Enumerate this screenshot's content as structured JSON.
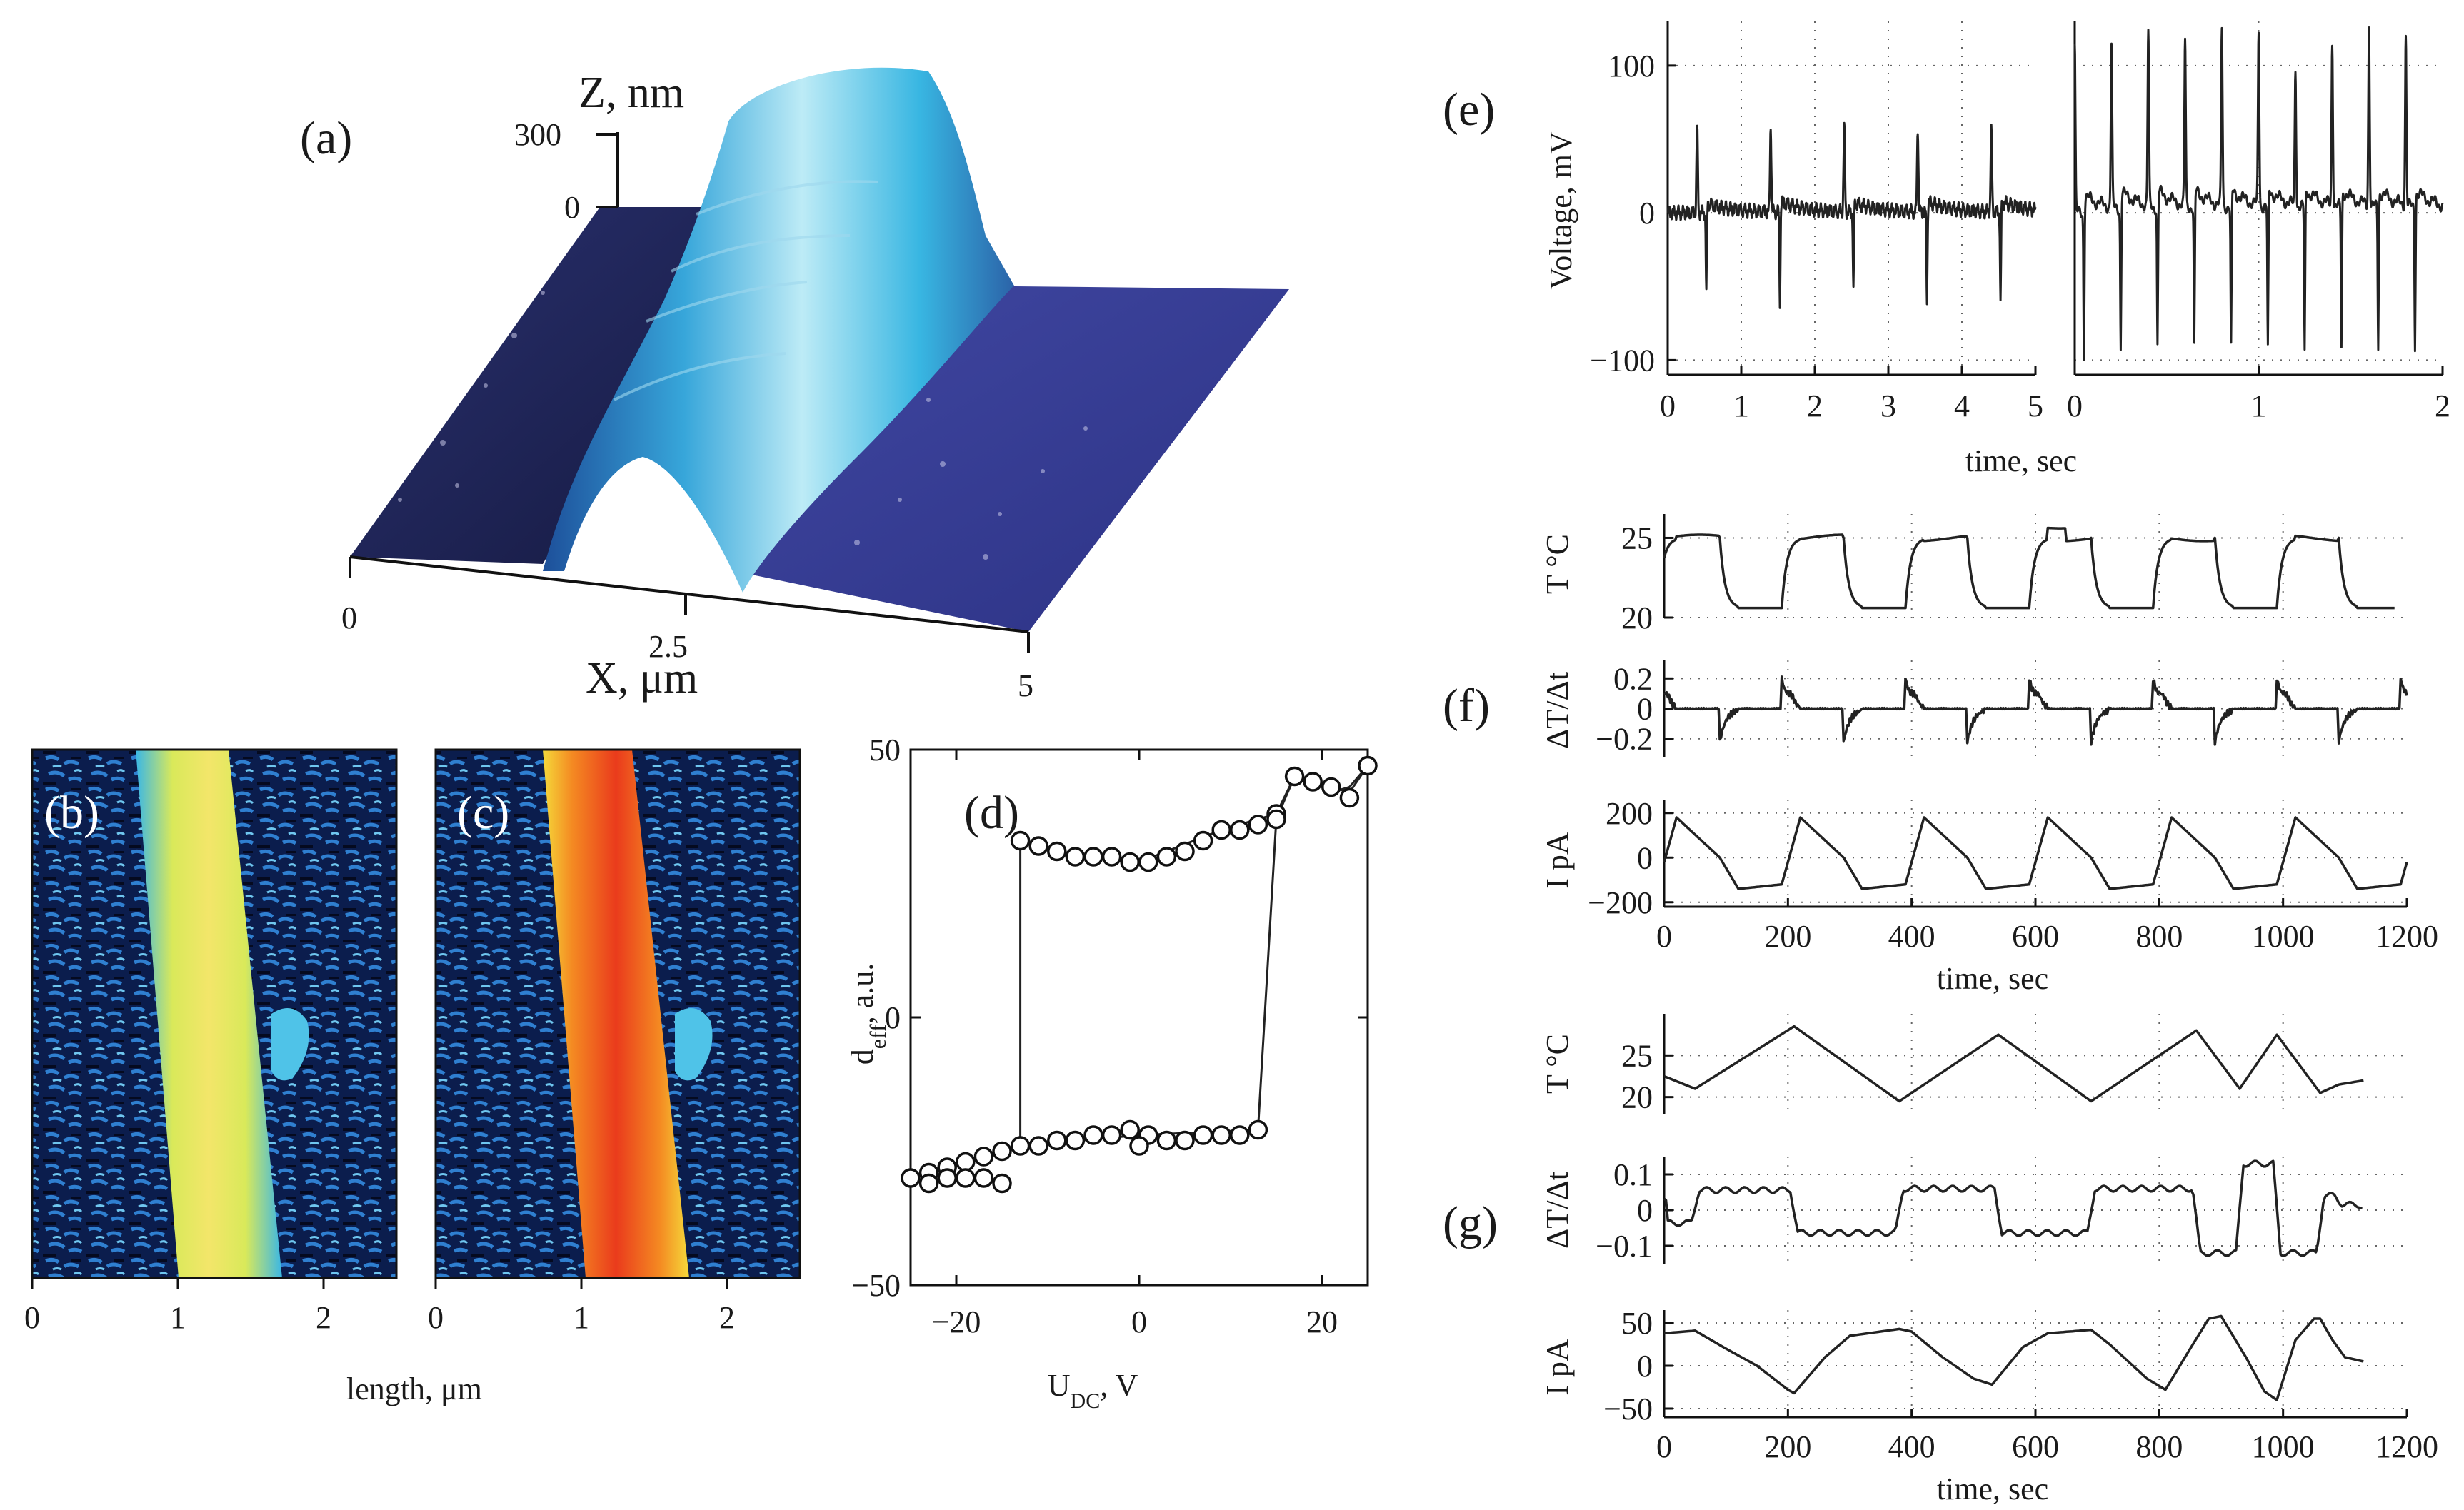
{
  "chart_data": [
    {
      "panel": "(a)",
      "type": "surface3d",
      "z_label": "Z, nm",
      "z_ticks": [
        "300",
        "0"
      ],
      "x_label": "X, μm",
      "x_ticks": [
        "0",
        "2.5",
        "5"
      ],
      "colors": {
        "ridge": "#4fc3e8",
        "base": "#3a3f96",
        "dark": "#1a1f55"
      }
    },
    {
      "panel": "(b)",
      "type": "heatmap",
      "x_label": "length, μm",
      "x_ticks": [
        "0",
        "1",
        "2"
      ],
      "xlim": [
        0,
        2.5
      ]
    },
    {
      "panel": "(c)",
      "type": "heatmap",
      "x_ticks": [
        "0",
        "1",
        "2"
      ],
      "xlim": [
        0,
        2.5
      ]
    },
    {
      "panel": "(d)",
      "type": "scatter",
      "x_label": "U_DC, V",
      "y_label": "d_eff, a.u.",
      "xlim": [
        -25,
        25
      ],
      "ylim": [
        -50,
        50
      ],
      "x_ticks": [
        -20,
        0,
        20
      ],
      "y_ticks": [
        -50,
        0,
        50
      ],
      "x_tick_labels": [
        "−20",
        "0",
        "20"
      ],
      "y_tick_labels": [
        "−50",
        "0",
        "50"
      ],
      "series": [
        {
          "x": [
            -13,
            -11,
            -9,
            -7,
            -5,
            -3,
            -1,
            1,
            3,
            5,
            7,
            9,
            11,
            13,
            15
          ],
          "y": [
            33,
            32,
            31,
            30,
            30,
            30,
            29,
            29,
            30,
            31,
            33,
            35,
            35,
            36,
            38
          ]
        },
        {
          "x": [
            -25,
            -23,
            -21,
            -19,
            -17,
            -15,
            -13,
            -11,
            -9,
            -7,
            -5,
            -3,
            -1,
            1,
            3,
            5,
            7,
            9,
            11,
            13
          ],
          "y": [
            -30,
            -29,
            -28,
            -27,
            -26,
            -25,
            -24,
            -24,
            -23,
            -23,
            -22,
            -22,
            -21,
            -22,
            -23,
            -23,
            -22,
            -22,
            -22,
            -21
          ]
        },
        {
          "x": [
            -23,
            -21,
            -19,
            -17,
            -15,
            0,
            15,
            17,
            19,
            21,
            23,
            25
          ],
          "y": [
            -31,
            -30,
            -30,
            -30,
            -31,
            -24,
            37,
            45,
            44,
            43,
            41,
            47
          ]
        }
      ],
      "loop": [
        [
          -25,
          -30
        ],
        [
          -13,
          -24
        ],
        [
          -13,
          33
        ],
        [
          -9,
          31
        ],
        [
          0,
          29
        ],
        [
          9,
          35
        ],
        [
          15,
          38
        ],
        [
          17,
          45
        ],
        [
          19,
          44
        ],
        [
          21,
          43
        ],
        [
          23,
          42
        ],
        [
          25,
          47
        ],
        [
          23,
          43
        ],
        [
          21,
          42
        ],
        [
          19,
          44
        ],
        [
          17,
          45
        ],
        [
          15,
          37
        ],
        [
          13,
          -21
        ],
        [
          0,
          -22
        ],
        [
          -13,
          -24
        ],
        [
          -25,
          -30
        ]
      ]
    },
    {
      "panel": "(e)",
      "type": "line",
      "y_label": "Voltage, mV",
      "x_label": "time, sec",
      "ylim": [
        -110,
        130
      ],
      "y_ticks": [
        -100,
        0,
        100
      ],
      "y_tick_labels": [
        "−100",
        "0",
        "100"
      ],
      "left": {
        "xlim": [
          0,
          5
        ],
        "x_ticks": [
          0,
          1,
          2,
          3,
          4,
          5
        ],
        "spike_times": [
          0.4,
          1.4,
          2.4,
          3.4,
          4.4
        ],
        "spike_heights": [
          58,
          58,
          57,
          57,
          55
        ],
        "neg_depth": [
          -55,
          -62,
          -55,
          -60,
          -62
        ]
      },
      "right": {
        "xlim": [
          0,
          2
        ],
        "x_ticks": [
          0,
          1,
          2
        ],
        "spike_times": [
          0.0,
          0.2,
          0.4,
          0.6,
          0.8,
          1.0,
          1.2,
          1.4,
          1.6,
          1.8
        ],
        "spike_heights": [
          115,
          110,
          118,
          112,
          120,
          118,
          92,
          110,
          122,
          115
        ],
        "neg_depth": [
          -98,
          -96,
          -95,
          -96,
          -97,
          -98,
          -100,
          -96,
          -95,
          -94
        ]
      }
    },
    {
      "panel": "(f)",
      "type": "line",
      "x_label": "time, sec",
      "xlim": [
        0,
        1200
      ],
      "x_ticks": [
        0,
        200,
        400,
        600,
        800,
        1000,
        1200
      ],
      "T": {
        "label": "T °C",
        "ylim": [
          20,
          26.5
        ],
        "y_ticks": [
          20,
          25
        ],
        "period": 200,
        "low": 20.6,
        "high": 25.0
      },
      "dTdt": {
        "label": "ΔT/Δt",
        "ylim": [
          -0.32,
          0.32
        ],
        "y_ticks": [
          0.2,
          0,
          -0.2
        ],
        "y_tick_labels": [
          "0.2",
          "0",
          "−0.2"
        ]
      },
      "I": {
        "label": "I pA",
        "ylim": [
          -220,
          260
        ],
        "y_ticks": [
          200,
          0,
          -200
        ],
        "y_tick_labels": [
          "200",
          "0",
          "−200"
        ]
      }
    },
    {
      "panel": "(g)",
      "type": "line",
      "x_label": "time, sec",
      "xlim": [
        0,
        1200
      ],
      "x_ticks": [
        0,
        200,
        400,
        600,
        800,
        1000,
        1200
      ],
      "T": {
        "label": "T °C",
        "ylim": [
          18,
          30
        ],
        "y_ticks": [
          20,
          25
        ],
        "points": [
          [
            0,
            22.5
          ],
          [
            50,
            21
          ],
          [
            210,
            28.5
          ],
          [
            380,
            19.5
          ],
          [
            540,
            27.5
          ],
          [
            690,
            19.5
          ],
          [
            860,
            28
          ],
          [
            930,
            21
          ],
          [
            990,
            27.5
          ],
          [
            1060,
            20.5
          ],
          [
            1090,
            21.5
          ],
          [
            1130,
            22
          ]
        ]
      },
      "dTdt": {
        "label": "ΔT/Δt",
        "ylim": [
          -0.15,
          0.15
        ],
        "y_ticks": [
          0.1,
          0,
          -0.1
        ],
        "y_tick_labels": [
          "0.1",
          "0",
          "−0.1"
        ]
      },
      "I": {
        "label": "I pA",
        "ylim": [
          -60,
          65
        ],
        "y_ticks": [
          50,
          0,
          -50
        ],
        "y_tick_labels": [
          "50",
          "0",
          "−50"
        ],
        "points": [
          [
            0,
            38
          ],
          [
            50,
            41
          ],
          [
            100,
            20
          ],
          [
            150,
            0
          ],
          [
            200,
            -28
          ],
          [
            210,
            -32
          ],
          [
            260,
            10
          ],
          [
            300,
            35
          ],
          [
            380,
            43
          ],
          [
            400,
            40
          ],
          [
            450,
            10
          ],
          [
            500,
            -15
          ],
          [
            530,
            -22
          ],
          [
            580,
            22
          ],
          [
            620,
            38
          ],
          [
            690,
            42
          ],
          [
            720,
            25
          ],
          [
            780,
            -15
          ],
          [
            810,
            -28
          ],
          [
            850,
            20
          ],
          [
            880,
            55
          ],
          [
            900,
            58
          ],
          [
            940,
            10
          ],
          [
            970,
            -30
          ],
          [
            990,
            -40
          ],
          [
            1020,
            30
          ],
          [
            1050,
            55
          ],
          [
            1060,
            55
          ],
          [
            1080,
            30
          ],
          [
            1100,
            10
          ],
          [
            1130,
            5
          ]
        ]
      }
    }
  ],
  "labels": {
    "a": "(a)",
    "b": "(b)",
    "c": "(c)",
    "d": "(d)",
    "e": "(e)",
    "f": "(f)",
    "g": "(g)",
    "z_axis": "Z, nm",
    "x_axis_a": "X, μm",
    "length": "length, μm",
    "udc": "U_DC, V",
    "deff": "d_eff, a.u.",
    "voltage": "Voltage, mV",
    "time": "time, sec",
    "T": "T °C",
    "dTdt": "ΔT/Δt",
    "I": "I pA"
  }
}
